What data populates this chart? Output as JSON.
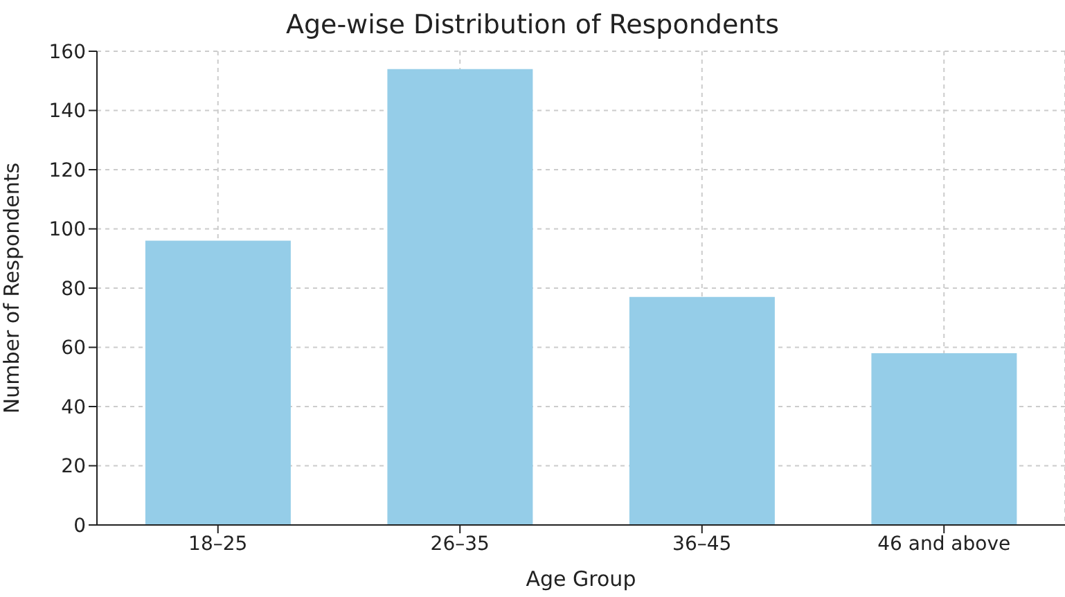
{
  "chart_data": {
    "type": "bar",
    "title": "Age-wise Distribution of Respondents",
    "xlabel": "Age Group",
    "ylabel": "Number of Respondents",
    "categories": [
      "18–25",
      "26–35",
      "36–45",
      "46 and above"
    ],
    "values": [
      96,
      154,
      77,
      58
    ],
    "color": "#95cde8",
    "ylim": [
      0,
      160
    ],
    "yticks": [
      0,
      20,
      40,
      60,
      80,
      100,
      120,
      140,
      160
    ],
    "grid": true
  }
}
